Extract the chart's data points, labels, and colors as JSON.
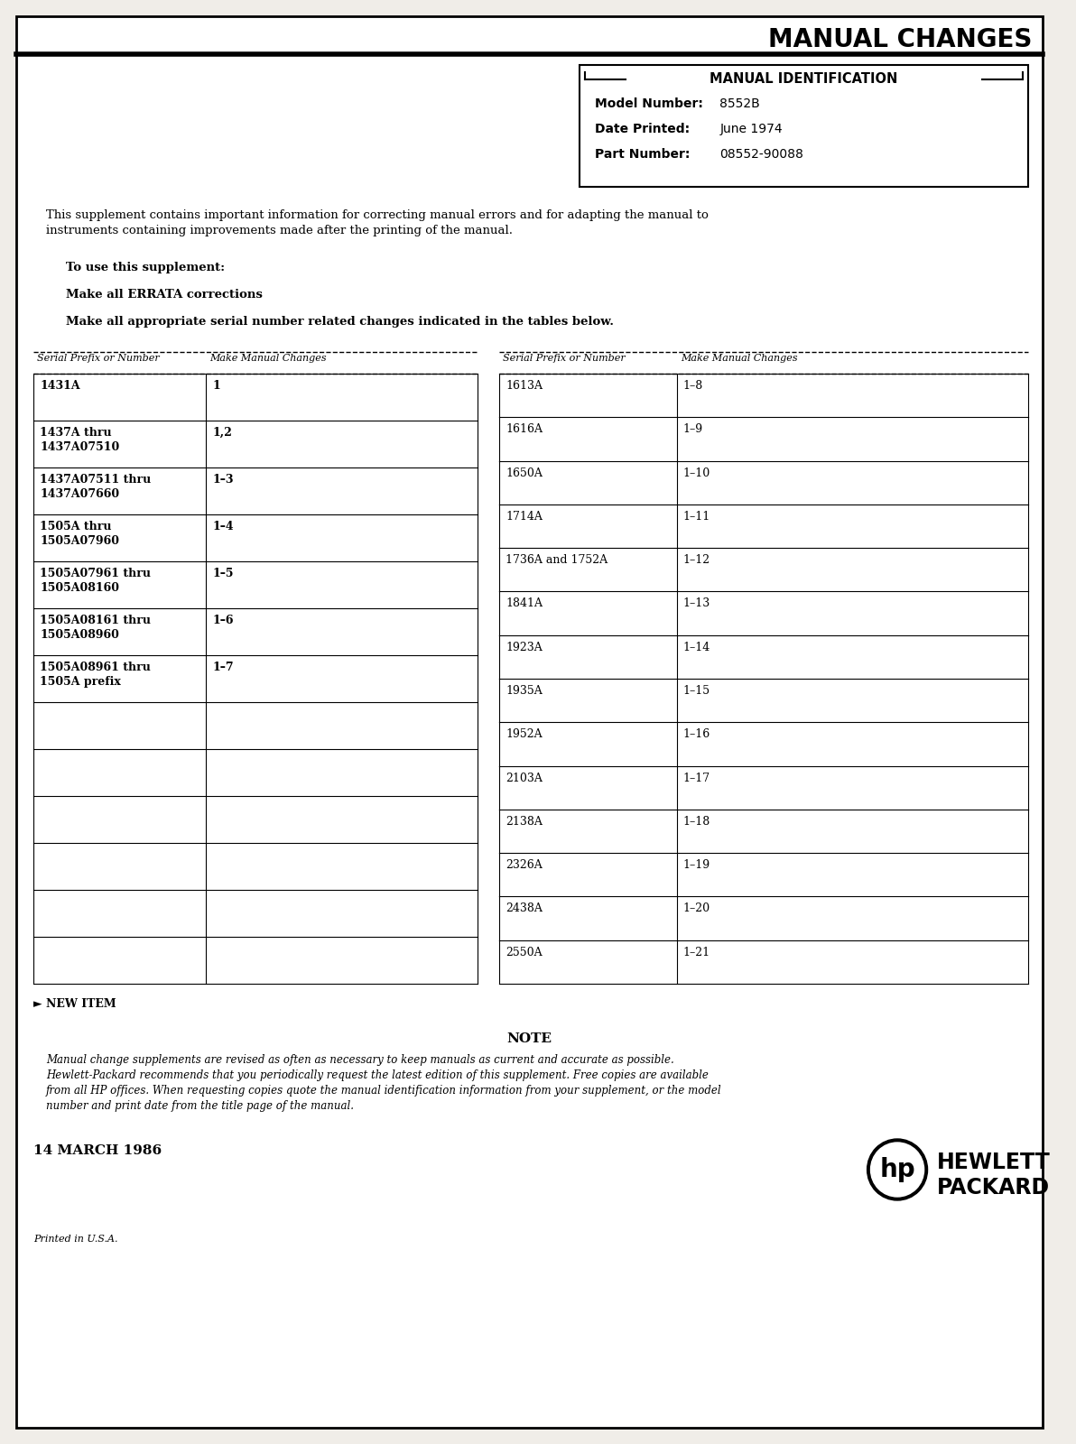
{
  "title": "MANUAL CHANGES",
  "bg_color": "#f0ede8",
  "page_bg": "#ffffff",
  "manual_id_box": {
    "title": "MANUAL IDENTIFICATION",
    "model_number": "8552B",
    "date_printed": "June 1974",
    "part_number": "08552-90088"
  },
  "intro_text": "This supplement contains important information for correcting manual errors and for adapting the manual to\ninstruments containing improvements made after the printing of the manual.",
  "instructions": [
    "To use this supplement:",
    "Make all ERRATA corrections",
    "Make all appropriate serial number related changes indicated in the tables below."
  ],
  "table_header_left": [
    "Serial Prefix or Number",
    "Make Manual Changes"
  ],
  "table_header_right": [
    "Serial Prefix or Number",
    "Make Manual Changes"
  ],
  "table_left": [
    [
      "1431A",
      "1"
    ],
    [
      "1437A thru\n1437A07510",
      "1,2"
    ],
    [
      "1437A07511 thru\n1437A07660",
      "1–3"
    ],
    [
      "1505A thru\n1505A07960",
      "1–4"
    ],
    [
      "1505A07961 thru\n1505A08160",
      "1–5"
    ],
    [
      "1505A08161 thru\n1505A08960",
      "1–6"
    ],
    [
      "1505A08961 thru\n1505A prefix",
      "1–7"
    ],
    [
      "",
      ""
    ],
    [
      "",
      ""
    ],
    [
      "",
      ""
    ],
    [
      "",
      ""
    ],
    [
      "",
      ""
    ],
    [
      "",
      ""
    ]
  ],
  "table_right": [
    [
      "1613A",
      "1–8"
    ],
    [
      "1616A",
      "1–9"
    ],
    [
      "1650A",
      "1–10"
    ],
    [
      "1714A",
      "1–11"
    ],
    [
      "1736A and 1752A",
      "1–12"
    ],
    [
      "1841A",
      "1–13"
    ],
    [
      "1923A",
      "1–14"
    ],
    [
      "1935A",
      "1–15"
    ],
    [
      "1952A",
      "1–16"
    ],
    [
      "2103A",
      "1–17"
    ],
    [
      "2138A",
      "1–18"
    ],
    [
      "2326A",
      "1–19"
    ],
    [
      "2438A",
      "1–20"
    ],
    [
      "2550A",
      "1–21"
    ]
  ],
  "new_item_text": "► NEW ITEM",
  "note_title": "NOTE",
  "note_text": "Manual change supplements are revised as often as necessary to keep manuals as current and accurate as possible.\nHewlett-Packard recommends that you periodically request the latest edition of this supplement. Free copies are available\nfrom all HP offices. When requesting copies quote the manual identification information from your supplement, or the model\nnumber and print date from the title page of the manual.",
  "date_text": "14 MARCH 1986",
  "footer_text": "Printed in U.S.A."
}
